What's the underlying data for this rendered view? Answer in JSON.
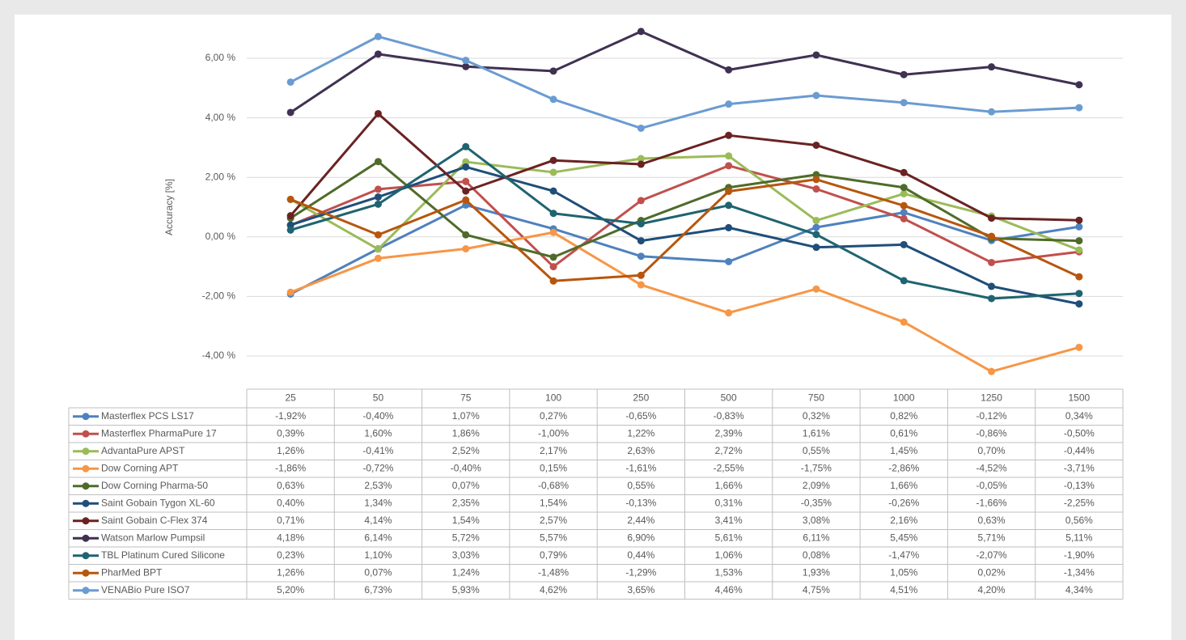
{
  "chart_data": {
    "type": "line",
    "y_label": "Accuracy [%]",
    "categories": [
      "25",
      "50",
      "75",
      "100",
      "250",
      "500",
      "750",
      "1000",
      "1250",
      "1500"
    ],
    "ylim": [
      -5,
      7
    ],
    "yticks": [
      {
        "value": -4,
        "label": "-4,00 %"
      },
      {
        "value": -2,
        "label": "-2,00 %"
      },
      {
        "value": 0,
        "label": "0,00 %"
      },
      {
        "value": 2,
        "label": "2,00 %"
      },
      {
        "value": 4,
        "label": "4,00 %"
      },
      {
        "value": 6,
        "label": "6,00 %"
      }
    ],
    "grid": true,
    "series": [
      {
        "name": "Masterflex PCS LS17",
        "color": "#4f81bd",
        "values": [
          -1.92,
          -0.4,
          1.07,
          0.27,
          -0.65,
          -0.83,
          0.32,
          0.82,
          -0.12,
          0.34
        ],
        "value_labels": [
          "-1,92%",
          "-0,40%",
          "1,07%",
          "0,27%",
          "-0,65%",
          "-0,83%",
          "0,32%",
          "0,82%",
          "-0,12%",
          "0,34%"
        ]
      },
      {
        "name": "Masterflex PharmaPure 17",
        "color": "#c0504d",
        "values": [
          0.39,
          1.6,
          1.86,
          -1.0,
          1.22,
          2.39,
          1.61,
          0.61,
          -0.86,
          -0.5
        ],
        "value_labels": [
          "0,39%",
          "1,60%",
          "1,86%",
          "-1,00%",
          "1,22%",
          "2,39%",
          "1,61%",
          "0,61%",
          "-0,86%",
          "-0,50%"
        ]
      },
      {
        "name": "AdvantaPure APST",
        "color": "#9bbb59",
        "values": [
          1.26,
          -0.41,
          2.52,
          2.17,
          2.63,
          2.72,
          0.55,
          1.45,
          0.7,
          -0.44
        ],
        "value_labels": [
          "1,26%",
          "-0,41%",
          "2,52%",
          "2,17%",
          "2,63%",
          "2,72%",
          "0,55%",
          "1,45%",
          "0,70%",
          "-0,44%"
        ]
      },
      {
        "name": "Dow Corning APT",
        "color": "#f79646",
        "values": [
          -1.86,
          -0.72,
          -0.4,
          0.15,
          -1.61,
          -2.55,
          -1.75,
          -2.86,
          -4.52,
          -3.71
        ],
        "value_labels": [
          "-1,86%",
          "-0,72%",
          "-0,40%",
          "0,15%",
          "-1,61%",
          "-2,55%",
          "-1,75%",
          "-2,86%",
          "-4,52%",
          "-3,71%"
        ]
      },
      {
        "name": "Dow Corning Pharma-50",
        "color": "#4f6b2a",
        "values": [
          0.63,
          2.53,
          0.07,
          -0.68,
          0.55,
          1.66,
          2.09,
          1.66,
          -0.05,
          -0.13
        ],
        "value_labels": [
          "0,63%",
          "2,53%",
          "0,07%",
          "-0,68%",
          "0,55%",
          "1,66%",
          "2,09%",
          "1,66%",
          "-0,05%",
          "-0,13%"
        ]
      },
      {
        "name": "Saint Gobain Tygon XL-60",
        "color": "#1f4e79",
        "values": [
          0.4,
          1.34,
          2.35,
          1.54,
          -0.13,
          0.31,
          -0.35,
          -0.26,
          -1.66,
          -2.25
        ],
        "value_labels": [
          "0,40%",
          "1,34%",
          "2,35%",
          "1,54%",
          "-0,13%",
          "0,31%",
          "-0,35%",
          "-0,26%",
          "-1,66%",
          "-2,25%"
        ]
      },
      {
        "name": "Saint Gobain C-Flex 374",
        "color": "#6b2222",
        "values": [
          0.71,
          4.14,
          1.54,
          2.57,
          2.44,
          3.41,
          3.08,
          2.16,
          0.63,
          0.56
        ],
        "value_labels": [
          "0,71%",
          "4,14%",
          "1,54%",
          "2,57%",
          "2,44%",
          "3,41%",
          "3,08%",
          "2,16%",
          "0,63%",
          "0,56%"
        ]
      },
      {
        "name": "Watson Marlow Pumpsil",
        "color": "#403152",
        "values": [
          4.18,
          6.14,
          5.72,
          5.57,
          6.9,
          5.61,
          6.11,
          5.45,
          5.71,
          5.11
        ],
        "value_labels": [
          "4,18%",
          "6,14%",
          "5,72%",
          "5,57%",
          "6,90%",
          "5,61%",
          "6,11%",
          "5,45%",
          "5,71%",
          "5,11%"
        ]
      },
      {
        "name": "TBL Platinum Cured Silicone",
        "color": "#1f6470",
        "values": [
          0.23,
          1.1,
          3.03,
          0.79,
          0.44,
          1.06,
          0.08,
          -1.47,
          -2.07,
          -1.9
        ],
        "value_labels": [
          "0,23%",
          "1,10%",
          "3,03%",
          "0,79%",
          "0,44%",
          "1,06%",
          "0,08%",
          "-1,47%",
          "-2,07%",
          "-1,90%"
        ]
      },
      {
        "name": "PharMed BPT",
        "color": "#b7560e",
        "values": [
          1.26,
          0.07,
          1.24,
          -1.48,
          -1.29,
          1.53,
          1.93,
          1.05,
          0.02,
          -1.34
        ],
        "value_labels": [
          "1,26%",
          "0,07%",
          "1,24%",
          "-1,48%",
          "-1,29%",
          "1,53%",
          "1,93%",
          "1,05%",
          "0,02%",
          "-1,34%"
        ]
      },
      {
        "name": "VENABio Pure ISO7",
        "color": "#6b9bd1",
        "values": [
          5.2,
          6.73,
          5.93,
          4.62,
          3.65,
          4.46,
          4.75,
          4.51,
          4.2,
          4.34
        ],
        "value_labels": [
          "5,20%",
          "6,73%",
          "5,93%",
          "4,62%",
          "3,65%",
          "4,46%",
          "4,75%",
          "4,51%",
          "4,20%",
          "4,34%"
        ]
      }
    ]
  }
}
